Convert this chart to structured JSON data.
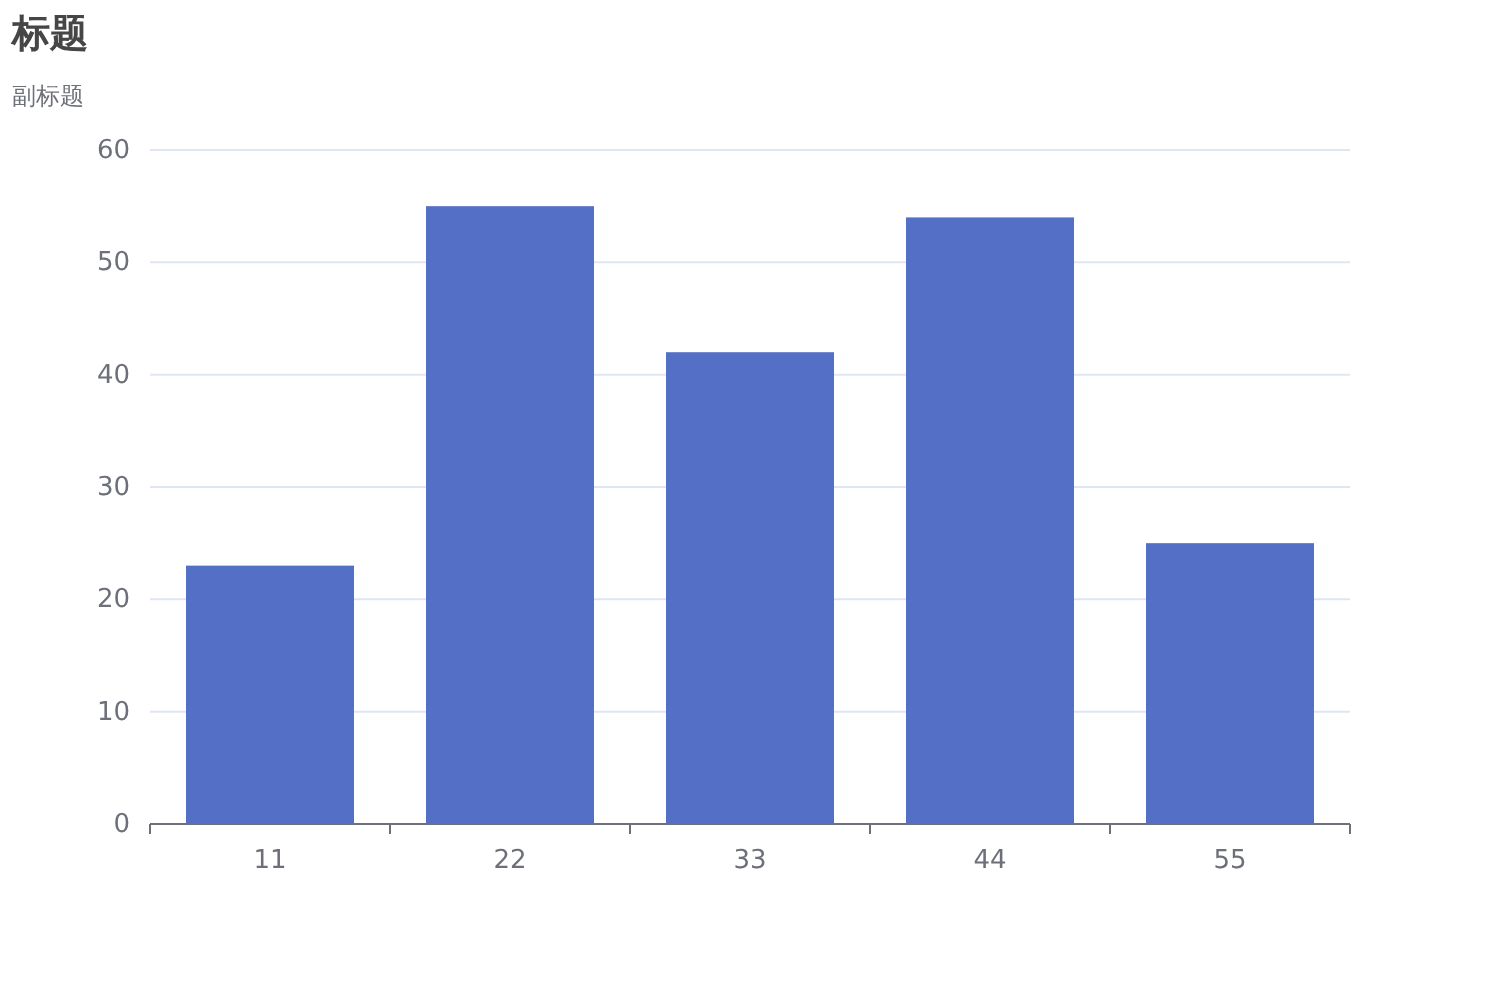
{
  "chart_data": {
    "type": "bar",
    "title": "标题",
    "subtitle": "副标题",
    "categories": [
      "11",
      "22",
      "33",
      "44",
      "55"
    ],
    "values": [
      23,
      55,
      42,
      54,
      25
    ],
    "color": "#5470c6",
    "ylim": [
      0,
      60
    ],
    "yticks": [
      0,
      10,
      20,
      30,
      40,
      50,
      60
    ],
    "grid": "y"
  }
}
